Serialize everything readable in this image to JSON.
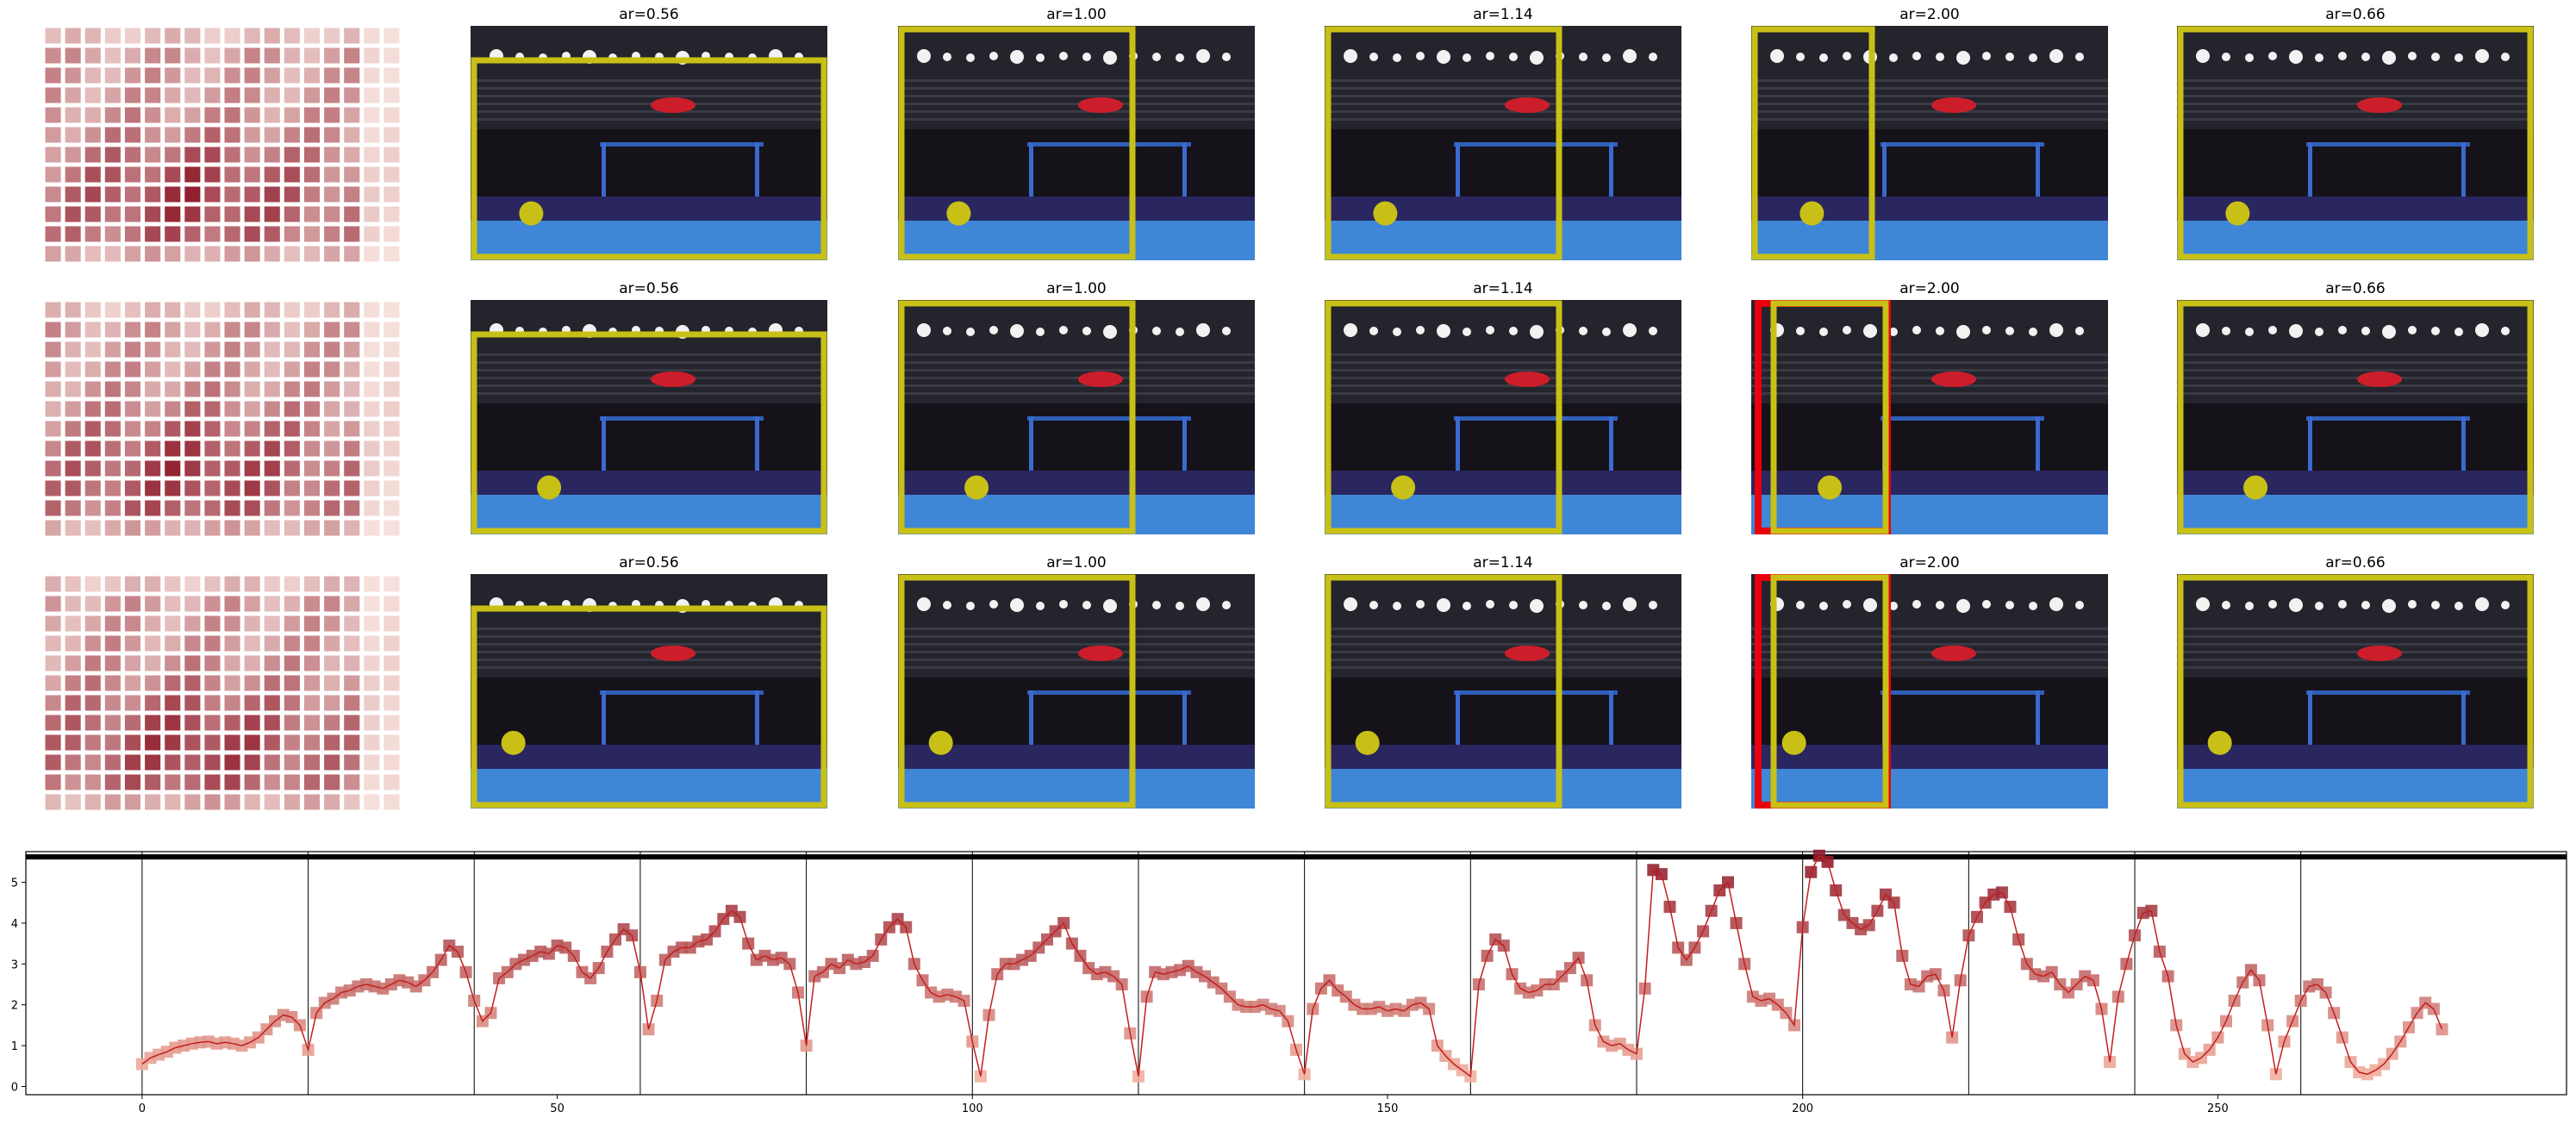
{
  "colors": {
    "highlight": "#c8c016",
    "alert": "#e8000c",
    "line": "#c41e1e",
    "heat_low": "#fbeae4",
    "heat_high": "#8e1a2a"
  },
  "frame_rows": [
    {
      "frames": [
        {
          "title": "ar=0.56",
          "crop": "right-wide",
          "dot": [
            0.17,
            0.8
          ],
          "red": false
        },
        {
          "title": "ar=1.00",
          "crop": "left-square",
          "dot": [
            0.17,
            0.8
          ],
          "red": false
        },
        {
          "title": "ar=1.14",
          "crop": "left-square",
          "dot": [
            0.17,
            0.8
          ],
          "red": false
        },
        {
          "title": "ar=2.00",
          "crop": "left-narrow",
          "dot": [
            0.17,
            0.8
          ],
          "red": false
        },
        {
          "title": "ar=0.66",
          "crop": "full",
          "dot": [
            0.17,
            0.8
          ],
          "red": false
        }
      ]
    },
    {
      "frames": [
        {
          "title": "ar=0.56",
          "crop": "right-wide",
          "dot": [
            0.22,
            0.8
          ],
          "red": false
        },
        {
          "title": "ar=1.00",
          "crop": "left-square",
          "dot": [
            0.22,
            0.8
          ],
          "red": false
        },
        {
          "title": "ar=1.14",
          "crop": "left-square",
          "dot": [
            0.22,
            0.8
          ],
          "red": false
        },
        {
          "title": "ar=2.00",
          "crop": "left-narrow",
          "dot": [
            0.22,
            0.8
          ],
          "red": true
        },
        {
          "title": "ar=0.66",
          "crop": "full",
          "dot": [
            0.22,
            0.8
          ],
          "red": false
        }
      ]
    },
    {
      "frames": [
        {
          "title": "ar=0.56",
          "crop": "right-wide",
          "dot": [
            0.12,
            0.72
          ],
          "red": false
        },
        {
          "title": "ar=1.00",
          "crop": "left-square",
          "dot": [
            0.12,
            0.72
          ],
          "red": false
        },
        {
          "title": "ar=1.14",
          "crop": "left-square",
          "dot": [
            0.12,
            0.72
          ],
          "red": false
        },
        {
          "title": "ar=2.00",
          "crop": "left-narrow",
          "dot": [
            0.12,
            0.72
          ],
          "red": true
        },
        {
          "title": "ar=0.66",
          "crop": "full",
          "dot": [
            0.12,
            0.72
          ],
          "red": false
        }
      ]
    }
  ],
  "chart_data": {
    "type": "line",
    "title": "",
    "xlabel": "",
    "ylabel": "",
    "xlim": [
      -14,
      292
    ],
    "ylim": [
      -0.2,
      5.75
    ],
    "xticks": [
      0,
      50,
      100,
      150,
      200,
      250
    ],
    "yticks": [
      0,
      1,
      2,
      3,
      4,
      5
    ],
    "vlines": [
      0,
      20,
      40,
      60,
      80,
      100,
      120,
      140,
      160,
      180,
      200,
      220,
      240,
      260
    ],
    "hline": 5.62,
    "series": [
      {
        "values": [
          0.55,
          0.7,
          0.78,
          0.85,
          0.95,
          1.0,
          1.05,
          1.08,
          1.1,
          1.05,
          1.08,
          1.05,
          1.0,
          1.08,
          1.2,
          1.4,
          1.6,
          1.75,
          1.7,
          1.5,
          0.9,
          1.8,
          2.05,
          2.15,
          2.3,
          2.35,
          2.45,
          2.5,
          2.45,
          2.4,
          2.5,
          2.6,
          2.55,
          2.45,
          2.6,
          2.8,
          3.1,
          3.45,
          3.3,
          2.8,
          2.1,
          1.6,
          1.8,
          2.65,
          2.8,
          3.0,
          3.1,
          3.2,
          3.3,
          3.25,
          3.45,
          3.4,
          3.2,
          2.8,
          2.65,
          2.9,
          3.3,
          3.6,
          3.85,
          3.7,
          2.8,
          1.4,
          2.1,
          3.1,
          3.3,
          3.4,
          3.4,
          3.55,
          3.6,
          3.8,
          4.1,
          4.3,
          4.15,
          3.5,
          3.1,
          3.2,
          3.1,
          3.15,
          3.0,
          2.3,
          1.0,
          2.7,
          2.8,
          3.0,
          2.9,
          3.1,
          3.0,
          3.05,
          3.2,
          3.6,
          3.9,
          4.1,
          3.9,
          3.0,
          2.6,
          2.3,
          2.2,
          2.25,
          2.2,
          2.1,
          1.1,
          0.25,
          1.75,
          2.75,
          3.0,
          3.0,
          3.1,
          3.2,
          3.4,
          3.6,
          3.8,
          4.0,
          3.5,
          3.2,
          2.9,
          2.75,
          2.8,
          2.7,
          2.5,
          1.3,
          0.25,
          2.2,
          2.8,
          2.75,
          2.8,
          2.85,
          2.95,
          2.8,
          2.7,
          2.55,
          2.4,
          2.2,
          2.0,
          1.95,
          1.95,
          2.0,
          1.9,
          1.85,
          1.6,
          0.9,
          0.3,
          1.9,
          2.4,
          2.6,
          2.35,
          2.2,
          2.0,
          1.9,
          1.9,
          1.95,
          1.85,
          1.9,
          1.85,
          2.0,
          2.05,
          1.9,
          1.0,
          0.75,
          0.55,
          0.4,
          0.25,
          2.5,
          3.2,
          3.6,
          3.45,
          2.75,
          2.4,
          2.3,
          2.35,
          2.5,
          2.5,
          2.7,
          2.9,
          3.15,
          2.6,
          1.5,
          1.1,
          1.0,
          1.05,
          0.9,
          0.8,
          2.4,
          5.3,
          5.2,
          4.4,
          3.4,
          3.1,
          3.4,
          3.8,
          4.3,
          4.8,
          5.0,
          4.0,
          3.0,
          2.2,
          2.1,
          2.15,
          2.0,
          1.8,
          1.5,
          3.9,
          5.25,
          5.65,
          5.5,
          4.8,
          4.2,
          4.0,
          3.85,
          3.95,
          4.3,
          4.7,
          4.5,
          3.2,
          2.5,
          2.45,
          2.7,
          2.75,
          2.35,
          1.2,
          2.6,
          3.7,
          4.15,
          4.5,
          4.7,
          4.75,
          4.4,
          3.6,
          3.0,
          2.75,
          2.7,
          2.8,
          2.5,
          2.3,
          2.5,
          2.7,
          2.6,
          1.9,
          0.6,
          2.2,
          3.0,
          3.7,
          4.25,
          4.3,
          3.3,
          2.7,
          1.5,
          0.8,
          0.6,
          0.7,
          0.9,
          1.2,
          1.6,
          2.1,
          2.55,
          2.85,
          2.6,
          1.5,
          0.3,
          1.1,
          1.6,
          2.1,
          2.45,
          2.5,
          2.3,
          1.8,
          1.2,
          0.6,
          0.35,
          0.3,
          0.4,
          0.55,
          0.8,
          1.1,
          1.45,
          1.8,
          2.05,
          1.9,
          1.4
        ]
      }
    ]
  }
}
